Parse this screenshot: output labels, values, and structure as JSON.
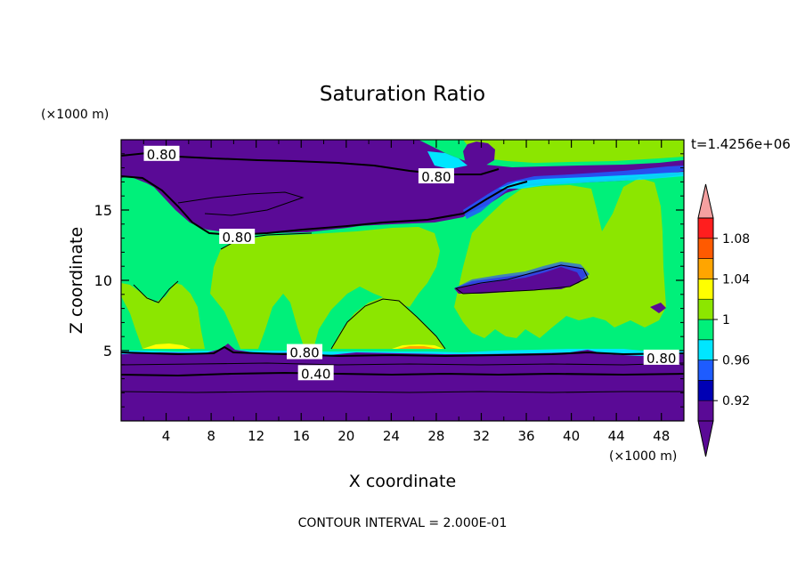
{
  "chart_data": {
    "type": "heatmap",
    "title": "Saturation Ratio",
    "xlabel": "X coordinate",
    "ylabel": "Z coordinate",
    "x_unit": "(×1000 m)",
    "y_unit": "(×1000 m)",
    "time_label": "t=1.4256e+06",
    "footer": "CONTOUR INTERVAL = 2.000E-01",
    "xlim": [
      0,
      50
    ],
    "ylim": [
      0,
      20
    ],
    "x_ticks": [
      4,
      8,
      12,
      16,
      20,
      24,
      28,
      32,
      36,
      40,
      44,
      48
    ],
    "y_ticks": [
      5,
      10,
      15
    ],
    "colorbar": {
      "labels": [
        "1.08",
        "1.04",
        "1",
        "0.96",
        "0.92"
      ],
      "label_values": [
        1.08,
        1.04,
        1.0,
        0.96,
        0.92
      ],
      "levels": [
        0.9,
        0.92,
        0.94,
        0.96,
        0.98,
        1.0,
        1.02,
        1.04,
        1.06,
        1.08,
        1.1
      ],
      "colors": [
        "#5a0a96",
        "#0000b4",
        "#1e5cff",
        "#00e6ff",
        "#00f07a",
        "#8ce600",
        "#ffff00",
        "#ffa500",
        "#ff5a00",
        "#ff1e1e",
        "#f5a0a0"
      ],
      "under_color": "#5a0a96",
      "over_color": "#f5a0a0"
    },
    "contour_labels": [
      {
        "text": "0.80",
        "x": 3.6,
        "y": 19.0
      },
      {
        "text": "0.80",
        "x": 28.0,
        "y": 17.4
      },
      {
        "text": "0.80",
        "x": 10.3,
        "y": 13.1
      },
      {
        "text": "0.80",
        "x": 16.3,
        "y": 4.9
      },
      {
        "text": "0.40",
        "x": 17.3,
        "y": 3.4
      },
      {
        "text": "0.80",
        "x": 48.0,
        "y": 4.5
      }
    ]
  },
  "colors": {
    "deep_purple": "#5a0a96",
    "teal_green": "#00f07a",
    "lime": "#8ce600",
    "cyan": "#00e6ff",
    "blue": "#1e5cff",
    "yellow": "#ffff00",
    "orange": "#ffa500"
  }
}
